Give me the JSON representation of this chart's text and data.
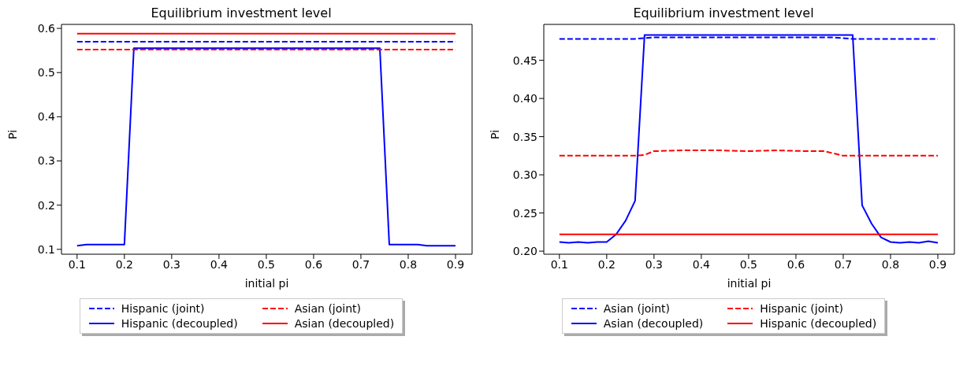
{
  "chart_data": [
    {
      "type": "line",
      "title": "Equilibrium investment level",
      "xlabel": "initial pi",
      "ylabel": "Pi",
      "xlim": [
        0.067,
        0.935
      ],
      "xticks": [
        0.1,
        0.2,
        0.3,
        0.4,
        0.5,
        0.6,
        0.7,
        0.8,
        0.9
      ],
      "ylim": [
        0.089,
        0.609
      ],
      "yticks": [
        0.1,
        0.2,
        0.3,
        0.4,
        0.5,
        0.6
      ],
      "legend": "bottom",
      "series": [
        {
          "name": "Hispanic (joint)",
          "color": "#0000ff",
          "line_style": "dashed",
          "x": [
            0.1,
            0.9
          ],
          "values": [
            0.57,
            0.57
          ]
        },
        {
          "name": "Hispanic (decoupled)",
          "color": "#0000ff",
          "line_style": "solid",
          "x": [
            0.1,
            0.12,
            0.14,
            0.16,
            0.18,
            0.2,
            0.22,
            0.24,
            0.26,
            0.28,
            0.3,
            0.32,
            0.34,
            0.36,
            0.38,
            0.4,
            0.42,
            0.44,
            0.46,
            0.48,
            0.5,
            0.52,
            0.54,
            0.56,
            0.58,
            0.6,
            0.62,
            0.64,
            0.66,
            0.68,
            0.7,
            0.72,
            0.74,
            0.76,
            0.78,
            0.8,
            0.82,
            0.84,
            0.86,
            0.88,
            0.9
          ],
          "values": [
            0.108,
            0.111,
            0.111,
            0.111,
            0.111,
            0.111,
            0.555,
            0.555,
            0.555,
            0.555,
            0.555,
            0.555,
            0.555,
            0.555,
            0.555,
            0.555,
            0.555,
            0.555,
            0.555,
            0.555,
            0.555,
            0.555,
            0.555,
            0.555,
            0.555,
            0.555,
            0.555,
            0.555,
            0.555,
            0.555,
            0.555,
            0.555,
            0.555,
            0.111,
            0.111,
            0.111,
            0.111,
            0.108,
            0.108,
            0.108,
            0.108
          ]
        },
        {
          "name": "Asian (joint)",
          "color": "#ff0000",
          "line_style": "dashed",
          "x": [
            0.1,
            0.9
          ],
          "values": [
            0.552,
            0.552
          ]
        },
        {
          "name": "Asian (decoupled)",
          "color": "#ff0000",
          "line_style": "solid",
          "x": [
            0.1,
            0.9
          ],
          "values": [
            0.588,
            0.588
          ]
        }
      ]
    },
    {
      "type": "line",
      "title": "Equilibrium investment level",
      "xlabel": "initial pi",
      "ylabel": "Pi",
      "xlim": [
        0.067,
        0.935
      ],
      "xticks": [
        0.1,
        0.2,
        0.3,
        0.4,
        0.5,
        0.6,
        0.7,
        0.8,
        0.9
      ],
      "ylim": [
        0.196,
        0.497
      ],
      "yticks": [
        {
          "value": 0.2,
          "label": "0.20"
        },
        0.25,
        {
          "value": 0.3,
          "label": "0.30"
        },
        0.35,
        {
          "value": 0.4,
          "label": "0.40"
        },
        0.45
      ],
      "legend": "bottom",
      "series": [
        {
          "name": "Asian (joint)",
          "color": "#0000ff",
          "line_style": "dashed",
          "x": [
            0.1,
            0.26,
            0.3,
            0.68,
            0.72,
            0.9
          ],
          "values": [
            0.478,
            0.478,
            0.48,
            0.48,
            0.478,
            0.478
          ]
        },
        {
          "name": "Asian (decoupled)",
          "color": "#0000ff",
          "line_style": "solid",
          "x": [
            0.1,
            0.12,
            0.14,
            0.16,
            0.18,
            0.2,
            0.22,
            0.24,
            0.26,
            0.28,
            0.3,
            0.32,
            0.34,
            0.36,
            0.38,
            0.4,
            0.42,
            0.44,
            0.46,
            0.48,
            0.5,
            0.52,
            0.54,
            0.56,
            0.58,
            0.6,
            0.62,
            0.64,
            0.66,
            0.68,
            0.7,
            0.72,
            0.74,
            0.76,
            0.78,
            0.8,
            0.82,
            0.84,
            0.86,
            0.88,
            0.9
          ],
          "values": [
            0.212,
            0.211,
            0.212,
            0.211,
            0.212,
            0.212,
            0.222,
            0.24,
            0.266,
            0.483,
            0.483,
            0.483,
            0.483,
            0.483,
            0.483,
            0.483,
            0.483,
            0.483,
            0.483,
            0.483,
            0.483,
            0.483,
            0.483,
            0.483,
            0.483,
            0.483,
            0.483,
            0.483,
            0.483,
            0.483,
            0.483,
            0.483,
            0.26,
            0.236,
            0.218,
            0.212,
            0.211,
            0.212,
            0.211,
            0.213,
            0.211
          ]
        },
        {
          "name": "Hispanic (joint)",
          "color": "#ff0000",
          "line_style": "dashed",
          "x": [
            0.1,
            0.26,
            0.28,
            0.3,
            0.36,
            0.44,
            0.5,
            0.56,
            0.62,
            0.66,
            0.7,
            0.9
          ],
          "values": [
            0.325,
            0.325,
            0.326,
            0.331,
            0.332,
            0.332,
            0.331,
            0.332,
            0.331,
            0.331,
            0.325,
            0.325
          ]
        },
        {
          "name": "Hispanic (decoupled)",
          "color": "#ff0000",
          "line_style": "solid",
          "x": [
            0.1,
            0.9
          ],
          "values": [
            0.222,
            0.222
          ]
        }
      ]
    }
  ]
}
